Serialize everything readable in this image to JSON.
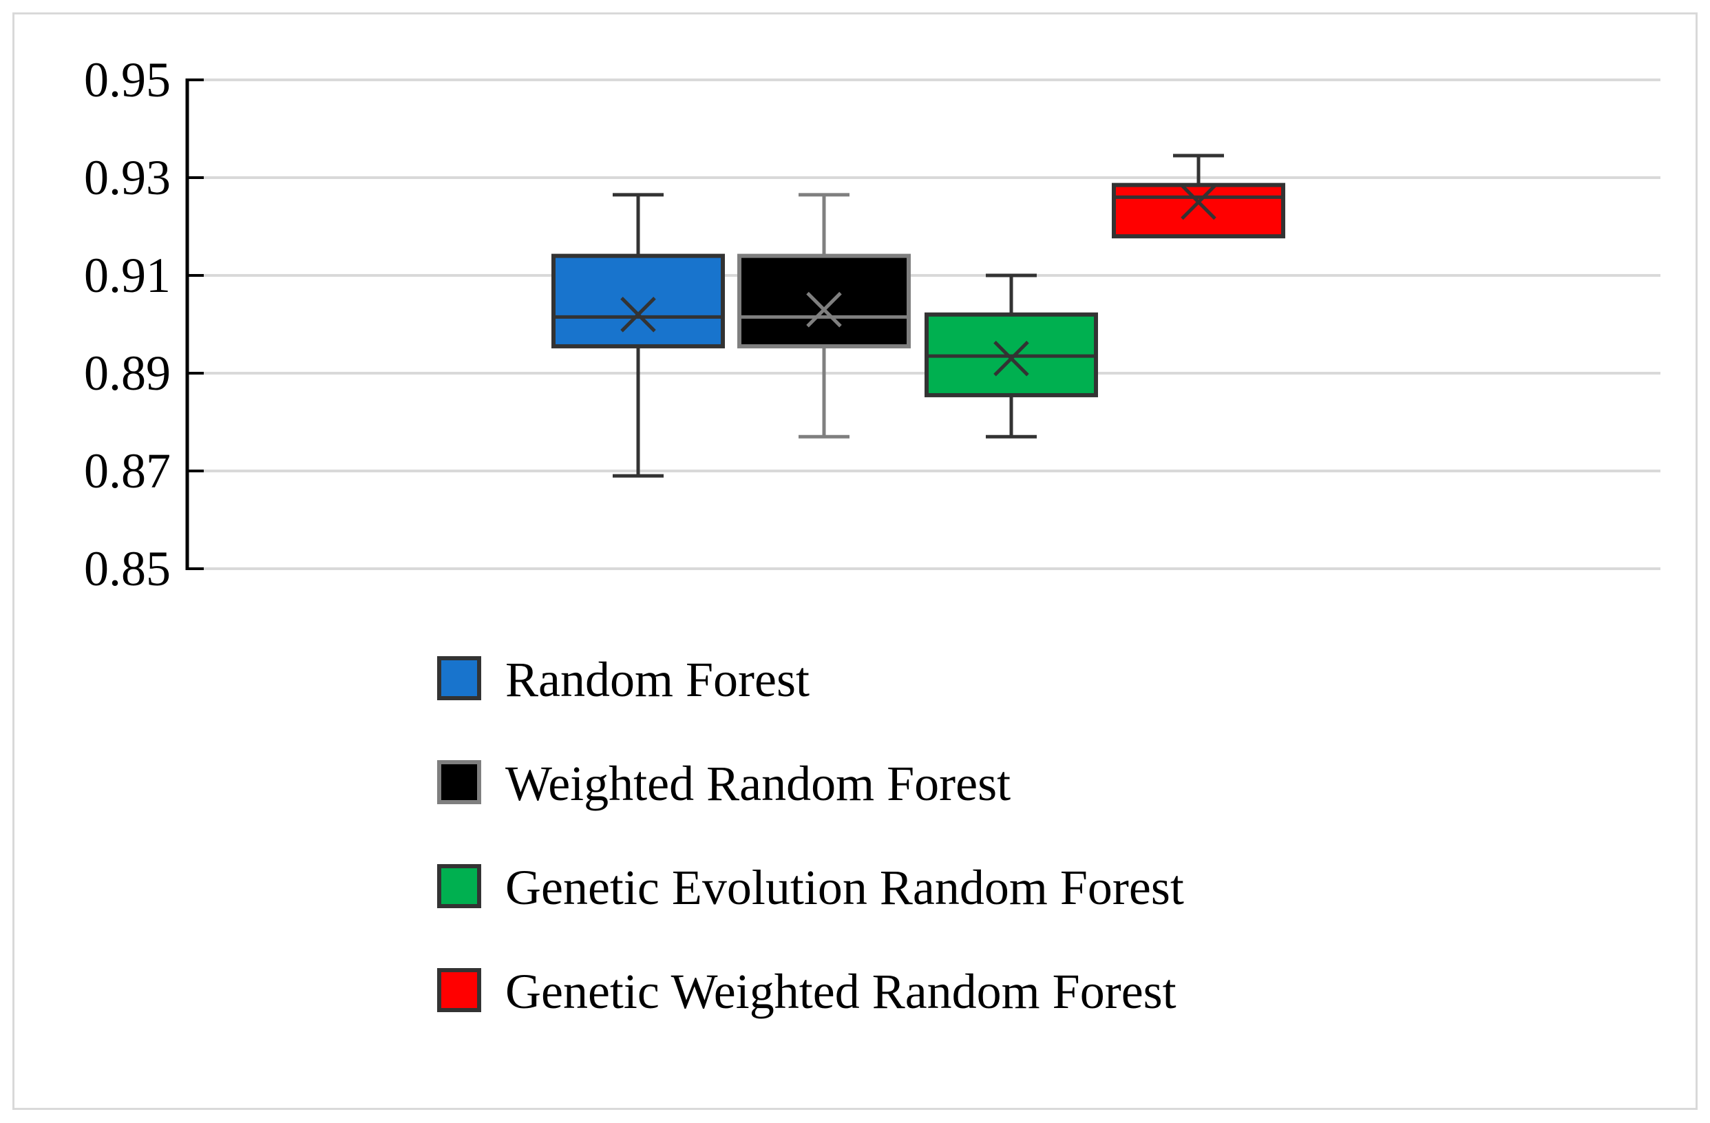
{
  "chart_data": {
    "type": "box",
    "title": "",
    "xlabel": "",
    "ylabel": "",
    "ylim": [
      0.85,
      0.95
    ],
    "y_ticks": [
      "0.95",
      "0.93",
      "0.91",
      "0.89",
      "0.87",
      "0.85"
    ],
    "grid": true,
    "legend_position": "bottom",
    "series": [
      {
        "name": "Random Forest",
        "color": "#1874cd",
        "border": "#333333",
        "whisker": "#333333",
        "mean_marker": "#333333",
        "min": 0.869,
        "q1": 0.8955,
        "median": 0.9015,
        "q3": 0.914,
        "max": 0.9265,
        "mean": 0.902
      },
      {
        "name": "Weighted Random Forest",
        "color": "#000000",
        "border": "#7f7f7f",
        "whisker": "#7f7f7f",
        "mean_marker": "#7f7f7f",
        "min": 0.877,
        "q1": 0.8955,
        "median": 0.9015,
        "q3": 0.914,
        "max": 0.9265,
        "mean": 0.903
      },
      {
        "name": "Genetic Evolution Random Forest",
        "color": "#00b050",
        "border": "#333333",
        "whisker": "#333333",
        "mean_marker": "#333333",
        "min": 0.877,
        "q1": 0.8855,
        "median": 0.8935,
        "q3": 0.902,
        "max": 0.91,
        "mean": 0.893
      },
      {
        "name": "Genetic Weighted Random Forest",
        "color": "#ff0000",
        "border": "#333333",
        "whisker": "#333333",
        "mean_marker": "#333333",
        "min": 0.918,
        "q1": 0.918,
        "median": 0.926,
        "q3": 0.9285,
        "max": 0.9345,
        "mean": 0.925
      }
    ]
  }
}
